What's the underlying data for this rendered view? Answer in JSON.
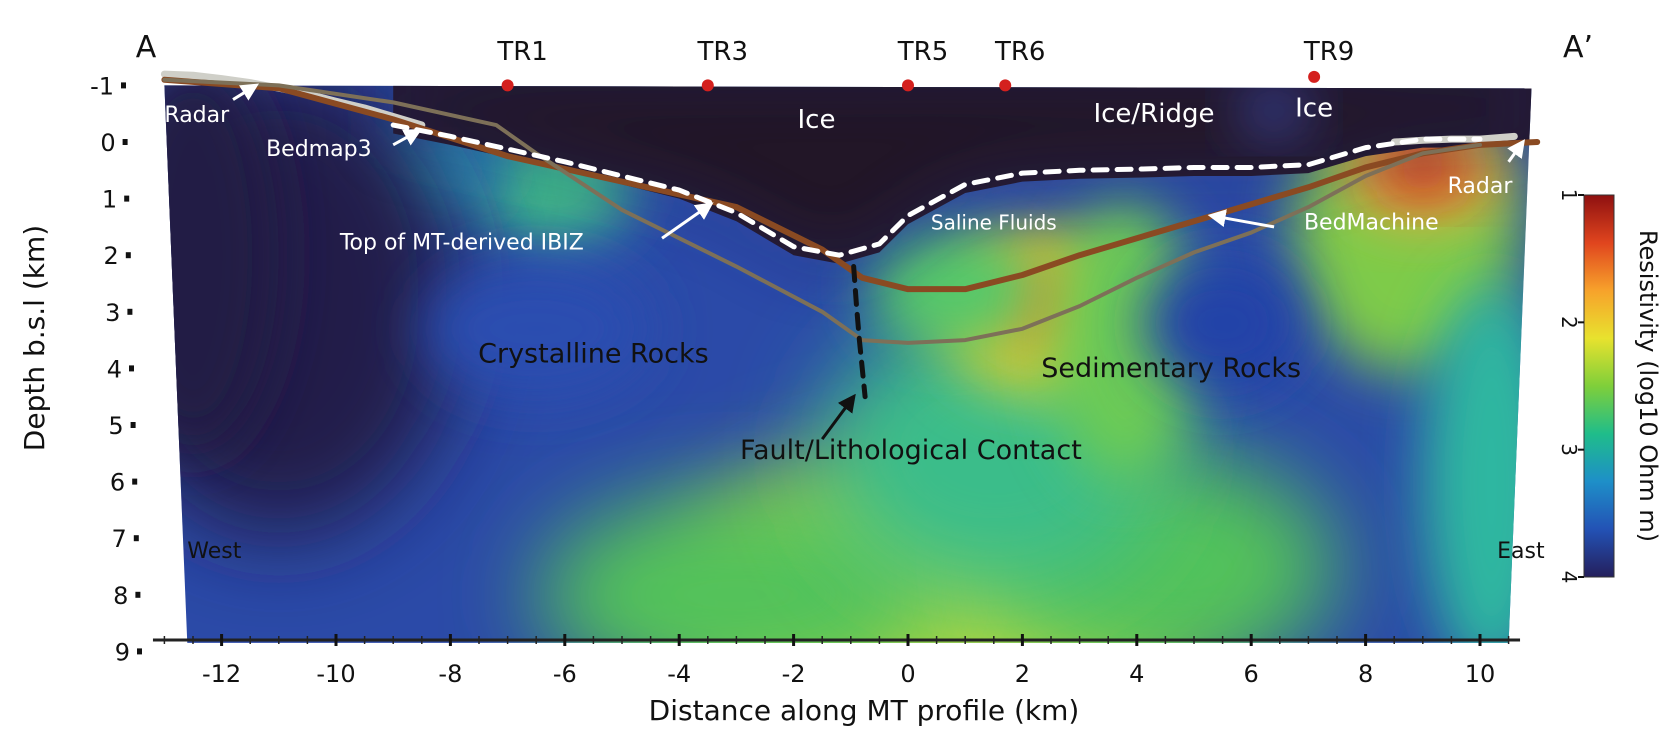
{
  "chart_data": {
    "type": "heatmap",
    "title": "",
    "xlabel": "Distance along MT profile (km)",
    "ylabel": "Depth b.s.l (km)",
    "xlim": [
      -13,
      11
    ],
    "ylim": [
      9,
      -1
    ],
    "x_ticks": [
      -12,
      -10,
      -8,
      -6,
      -4,
      -2,
      0,
      2,
      4,
      6,
      8,
      10
    ],
    "y_ticks": [
      -1,
      0,
      1,
      2,
      3,
      4,
      5,
      6,
      7,
      8,
      9
    ],
    "colorbar": {
      "label": "Resistivity (log10 Ohm m)",
      "ticks": [
        1,
        2,
        3,
        4
      ],
      "range": [
        1,
        4
      ],
      "colors": [
        "#8e1010",
        "#e0451e",
        "#f7a22b",
        "#e8e22e",
        "#7fcf3a",
        "#1fbd8a",
        "#1e8fc8",
        "#2352b5",
        "#241f5c"
      ]
    },
    "profile_endpoints": {
      "start": "A",
      "end": "A’"
    },
    "stations": [
      {
        "name": "TR1",
        "x": -7.0
      },
      {
        "name": "TR3",
        "x": -3.5
      },
      {
        "name": "TR5",
        "x": 0.0
      },
      {
        "name": "TR6",
        "x": 1.7
      },
      {
        "name": "TR9",
        "x": 7.1
      }
    ],
    "lines": [
      {
        "name": "Radar",
        "color": "#cfcfc8",
        "x": [
          -13,
          -12.5,
          -12,
          -11.5,
          -11,
          -10.5,
          -10,
          -9.5,
          -9,
          -8.5
        ],
        "y": [
          -1.2,
          -1.18,
          -1.12,
          -1.05,
          -0.95,
          -0.85,
          -0.72,
          -0.6,
          -0.45,
          -0.3
        ]
      },
      {
        "name": "Radar",
        "color": "#cfcfc8",
        "x": [
          8.5,
          9.0,
          9.5,
          10.0,
          10.6
        ],
        "y": [
          0.0,
          -0.03,
          -0.05,
          -0.05,
          -0.1
        ]
      },
      {
        "name": "Bedmap3",
        "color": "#8a4a22",
        "x": [
          -13,
          -11,
          -9,
          -7,
          -5,
          -3,
          -1.5,
          -0.8,
          0,
          1,
          2,
          3,
          4,
          5,
          6,
          7,
          8,
          9,
          10,
          11
        ],
        "y": [
          -1.1,
          -0.95,
          -0.4,
          0.25,
          0.7,
          1.15,
          1.9,
          2.4,
          2.6,
          2.6,
          2.35,
          2.0,
          1.7,
          1.4,
          1.1,
          0.8,
          0.45,
          0.2,
          0.05,
          0.0
        ]
      },
      {
        "name": "BedMachine",
        "color": "#7d7058",
        "x": [
          -13,
          -11,
          -9,
          -7.2,
          -6.5,
          -5,
          -3,
          -1.5,
          -0.8,
          0,
          1,
          2,
          3,
          4,
          5,
          6,
          7,
          8,
          9,
          10
        ],
        "y": [
          -1.1,
          -1.0,
          -0.7,
          -0.3,
          0.2,
          1.2,
          2.2,
          3.0,
          3.5,
          3.55,
          3.5,
          3.3,
          2.9,
          2.4,
          1.95,
          1.6,
          1.15,
          0.6,
          0.2,
          0.05
        ]
      },
      {
        "name": "Top of MT-derived IBIZ",
        "color": "#ffffff",
        "dash": true,
        "x": [
          -9,
          -8,
          -6,
          -4,
          -3,
          -2,
          -1.2,
          -0.5,
          0,
          1,
          2,
          3,
          4,
          5,
          6,
          7,
          8,
          9,
          10
        ],
        "y": [
          -0.3,
          -0.1,
          0.35,
          0.85,
          1.25,
          1.85,
          2.0,
          1.8,
          1.3,
          0.75,
          0.55,
          0.5,
          0.48,
          0.45,
          0.45,
          0.4,
          0.1,
          -0.05,
          -0.05
        ]
      },
      {
        "name": "Fault/Lithological Contact",
        "color": "#111111",
        "dash": true,
        "x": [
          -0.95,
          -0.9,
          -0.85,
          -0.8,
          -0.75
        ],
        "y": [
          2.2,
          2.9,
          3.5,
          4.0,
          4.5
        ]
      }
    ],
    "region_labels": [
      {
        "text": "Ice",
        "x": -1.6,
        "y": -0.25,
        "color": "#ffffff",
        "size": 26
      },
      {
        "text": "Ice/Ridge",
        "x": 4.3,
        "y": -0.35,
        "color": "#ffffff",
        "size": 26
      },
      {
        "text": "Ice",
        "x": 7.1,
        "y": -0.45,
        "color": "#ffffff",
        "size": 26
      },
      {
        "text": "Saline Fluids",
        "x": 1.5,
        "y": 1.55,
        "color": "#ffffff",
        "size": 20
      },
      {
        "text": "Crystalline Rocks",
        "x": -5.5,
        "y": 3.9,
        "color": "#111111",
        "size": 27
      },
      {
        "text": "Sedimentary Rocks",
        "x": 4.6,
        "y": 4.15,
        "color": "#111111",
        "size": 27
      },
      {
        "text": "Fault/Lithological Contact",
        "x": 0.05,
        "y": 5.6,
        "color": "#111111",
        "size": 27
      },
      {
        "text": "West",
        "x": -12.6,
        "y": 7.35,
        "color": "#111111",
        "size": 22
      },
      {
        "text": "East",
        "x": 10.3,
        "y": 7.35,
        "color": "#111111",
        "size": 22
      }
    ],
    "annotations": [
      {
        "text": "Radar",
        "x": -13,
        "y": -0.35,
        "color": "#ffffff",
        "anchor": "start",
        "arrow_from": [
          -11.8,
          -0.75
        ],
        "arrow_to": [
          -11.4,
          -1.0
        ]
      },
      {
        "text": "Bedmap3",
        "x": -10.3,
        "y": 0.25,
        "color": "#ffffff",
        "anchor": "middle",
        "arrow_from": [
          -9.0,
          0.05
        ],
        "arrow_to": [
          -8.55,
          -0.2
        ]
      },
      {
        "text": "Top of MT-derived IBIZ",
        "x": -7.8,
        "y": 1.9,
        "color": "#ffffff",
        "anchor": "middle",
        "arrow_from": [
          -4.3,
          1.7
        ],
        "arrow_to": [
          -3.45,
          1.1
        ]
      },
      {
        "text": "Radar",
        "x": 10.0,
        "y": 0.9,
        "color": "#ffffff",
        "anchor": "middle",
        "arrow_from": [
          10.5,
          0.35
        ],
        "arrow_to": [
          10.75,
          0.0
        ]
      },
      {
        "text": "BedMachine",
        "x": 8.1,
        "y": 1.55,
        "color": "#ffffff",
        "anchor": "middle",
        "arrow_from": [
          6.4,
          1.5
        ],
        "arrow_to": [
          5.3,
          1.3
        ]
      },
      {
        "text": "",
        "x": -1.4,
        "y": 5.0,
        "color": "#111111",
        "anchor": "middle",
        "arrow_from": [
          -1.5,
          5.25
        ],
        "arrow_to": [
          -0.95,
          4.5
        ]
      }
    ]
  }
}
